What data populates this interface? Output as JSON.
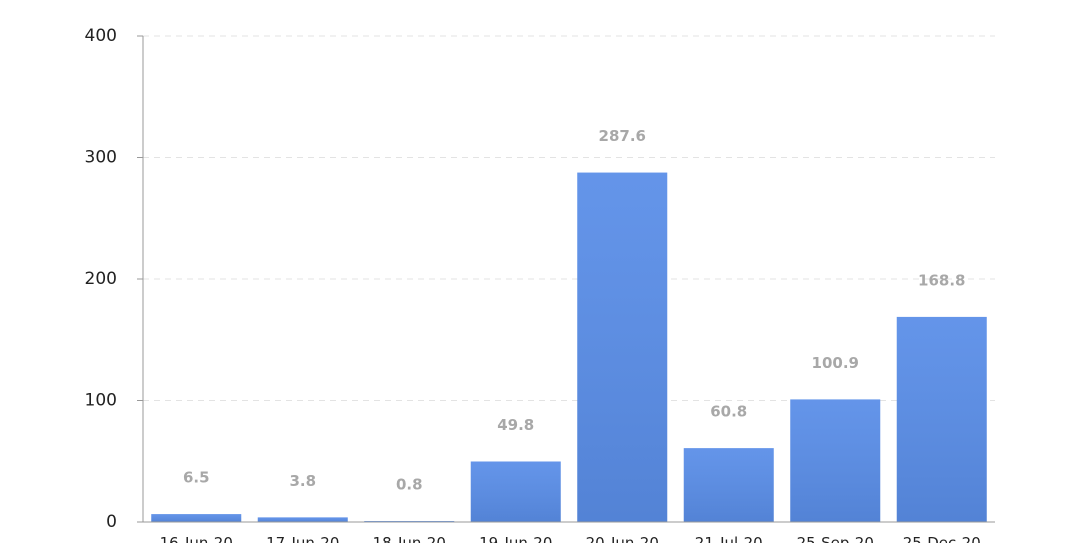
{
  "chart_data": {
    "type": "bar",
    "categories": [
      "16-Jun-20",
      "17-Jun-20",
      "18-Jun-20",
      "19-Jun-20",
      "20-Jun-20",
      "21-Jul-20",
      "25-Sep-20",
      "25-Dec-20"
    ],
    "values": [
      6.5,
      3.8,
      0.8,
      49.8,
      287.6,
      60.8,
      100.9,
      168.8
    ],
    "color": "#5a8ee8",
    "ylim": [
      0,
      400
    ],
    "yticks": [
      0,
      100,
      200,
      300,
      400
    ],
    "grid": true
  }
}
